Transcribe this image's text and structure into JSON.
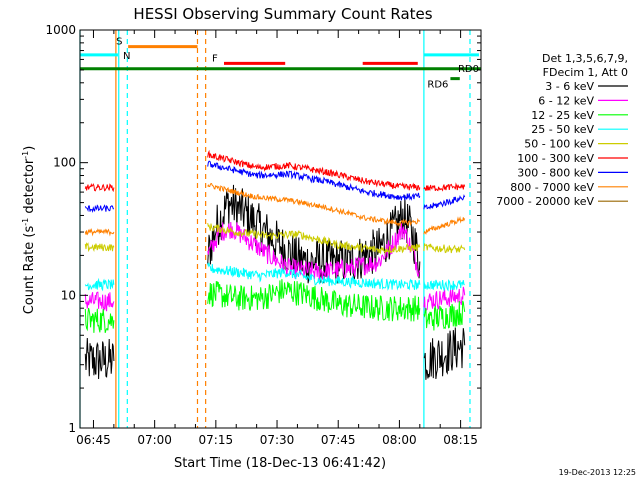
{
  "chart_data": {
    "type": "line",
    "title": "HESSI Observing Summary Count Rates",
    "xlabel": "Start Time (18-Dec-13 06:41:42)",
    "ylabel_main": "Count Rate (s",
    "ylabel_exp1": "-1",
    "ylabel_mid": " detector",
    "ylabel_exp2": "-1",
    "ylabel_end": ")",
    "timestamp": "19-Dec-2013 12:25",
    "x_axis": {
      "range_min": [
        6,
        41.7
      ],
      "range_max": [
        8,
        20
      ],
      "tick_labels": [
        "06:45",
        "07:00",
        "07:15",
        "07:30",
        "07:45",
        "08:00",
        "08:15"
      ],
      "tick_minutes": [
        405,
        420,
        435,
        450,
        465,
        480,
        495
      ],
      "minor_step_minutes": 5
    },
    "y_axis": {
      "scale": "log",
      "ylim": [
        1,
        1000
      ],
      "tick_labels": [
        "1",
        "10",
        "100",
        "1000"
      ],
      "tick_values": [
        1,
        10,
        100,
        1000
      ]
    },
    "legend": {
      "placement": "right",
      "header1": "Det 1,3,5,6,7,9,",
      "header2": "FDecim 1, Att 0",
      "entries": [
        {
          "label": "3 - 6 keV",
          "color": "#000000"
        },
        {
          "label": "6 - 12 keV",
          "color": "#ff00ff"
        },
        {
          "label": "12 - 25 keV",
          "color": "#00ff00"
        },
        {
          "label": "25 - 50 keV",
          "color": "#00ffff"
        },
        {
          "label": "50 - 100 keV",
          "color": "#cccc00"
        },
        {
          "label": "100 - 300 keV",
          "color": "#ff0000"
        },
        {
          "label": "300 - 800 keV",
          "color": "#0000ff"
        },
        {
          "label": "800 - 7000 keV",
          "color": "#ff8000"
        },
        {
          "label": "7000 - 20000 keV",
          "color": "#996600"
        }
      ]
    },
    "flag_bars": [
      {
        "label": "S",
        "color": "#ff8000",
        "start": [
          6,
          53.5
        ],
        "end": [
          7,
          10.5
        ],
        "y": 750
      },
      {
        "label": "N",
        "color": "#00ffff",
        "start": [
          6,
          41.7
        ],
        "end": [
          6,
          51
        ],
        "y": 650
      },
      {
        "label": "",
        "color": "#00ffff",
        "start": [
          8,
          6
        ],
        "end": [
          8,
          19.5
        ],
        "y": 650
      },
      {
        "label": "F",
        "color": "#ff0000",
        "start": [
          7,
          17
        ],
        "end": [
          7,
          32
        ],
        "y": 560
      },
      {
        "label": "",
        "color": "#ff0000",
        "start": [
          7,
          51
        ],
        "end": [
          8,
          4.5
        ],
        "y": 560
      },
      {
        "label": "RD0",
        "color": "#008000",
        "start": [
          6,
          41.7
        ],
        "end": [
          8,
          20
        ],
        "y": 510
      },
      {
        "label": "RD6",
        "color": "#008000",
        "start": [
          8,
          12.5
        ],
        "end": [
          8,
          14.8
        ],
        "y": 430
      }
    ],
    "vertical_markers": [
      {
        "color": "#00ffff",
        "style": "solid",
        "time": [
          6,
          41.7
        ]
      },
      {
        "color": "#ff8000",
        "style": "solid",
        "time": [
          6,
          50.5
        ]
      },
      {
        "color": "#00ffff",
        "style": "solid",
        "time": [
          6,
          51.2
        ]
      },
      {
        "color": "#00ffff",
        "style": "dashed",
        "time": [
          6,
          53.3
        ]
      },
      {
        "color": "#ff8000",
        "style": "dashed",
        "time": [
          7,
          10.5
        ]
      },
      {
        "color": "#ff8000",
        "style": "dashed",
        "time": [
          7,
          12.5
        ]
      },
      {
        "color": "#00ffff",
        "style": "solid",
        "time": [
          8,
          6
        ]
      },
      {
        "color": "#00ffff",
        "style": "dashed",
        "time": [
          8,
          17.3
        ]
      }
    ],
    "series": [
      {
        "name": "3 - 6 keV",
        "color": "#000000",
        "noise": 0.35,
        "segments": [
          [
            [
              [
                6,
                43
              ],
              3.2
            ],
            [
              [
                6,
                50
              ],
              3.2
            ]
          ],
          [
            [
              [
                7,
                13
              ],
              20
            ],
            [
              [
                7,
                15
              ],
              32
            ],
            [
              [
                7,
                18
              ],
              50
            ],
            [
              [
                7,
                22
              ],
              42
            ],
            [
              [
                7,
                27
              ],
              30
            ],
            [
              [
                7,
                32
              ],
              22
            ],
            [
              [
                7,
                36
              ],
              18
            ],
            [
              [
                7,
                42
              ],
              18
            ],
            [
              [
                7,
                48
              ],
              18
            ],
            [
              [
                7,
                55
              ],
              22
            ],
            [
              [
                7,
                59
              ],
              32
            ],
            [
              [
                8,
                1
              ],
              40
            ],
            [
              [
                8,
                3
              ],
              30
            ],
            [
              [
                8,
                5
              ],
              18
            ]
          ],
          [
            [
              [
                8,
                6
              ],
              3.2
            ],
            [
              [
                8,
                16
              ],
              4.2
            ]
          ]
        ]
      },
      {
        "name": "6 - 12 keV",
        "color": "#ff00ff",
        "noise": 0.15,
        "segments": [
          [
            [
              [
                6,
                43
              ],
              9
            ],
            [
              [
                6,
                50
              ],
              9
            ]
          ],
          [
            [
              [
                7,
                13
              ],
              20
            ],
            [
              [
                7,
                16
              ],
              30
            ],
            [
              [
                7,
                19
              ],
              32
            ],
            [
              [
                7,
                23
              ],
              26
            ],
            [
              [
                7,
                28
              ],
              20
            ],
            [
              [
                7,
                33
              ],
              16
            ],
            [
              [
                7,
                40
              ],
              15
            ],
            [
              [
                7,
                48
              ],
              16
            ],
            [
              [
                7,
                55
              ],
              18
            ],
            [
              [
                7,
                59
              ],
              26
            ],
            [
              [
                8,
                1
              ],
              32
            ],
            [
              [
                8,
                3
              ],
              22
            ],
            [
              [
                8,
                5
              ],
              15
            ]
          ],
          [
            [
              [
                8,
                6
              ],
              9
            ],
            [
              [
                8,
                16
              ],
              10
            ]
          ]
        ]
      },
      {
        "name": "12 - 25 keV",
        "color": "#00ff00",
        "noise": 0.2,
        "segments": [
          [
            [
              [
                6,
                43
              ],
              6.5
            ],
            [
              [
                6,
                50
              ],
              6.5
            ]
          ],
          [
            [
              [
                7,
                13
              ],
              10.5
            ],
            [
              [
                7,
                20
              ],
              9.5
            ],
            [
              [
                7,
                26
              ],
              9.5
            ],
            [
              [
                7,
                32
              ],
              11
            ],
            [
              [
                7,
                38
              ],
              10
            ],
            [
              [
                7,
                45
              ],
              8.5
            ],
            [
              [
                7,
                55
              ],
              8
            ],
            [
              [
                8,
                5
              ],
              8
            ]
          ],
          [
            [
              [
                8,
                6
              ],
              6.5
            ],
            [
              [
                8,
                16
              ],
              7.5
            ]
          ]
        ]
      },
      {
        "name": "25 - 50 keV",
        "color": "#00ffff",
        "noise": 0.08,
        "segments": [
          [
            [
              [
                6,
                43
              ],
              12
            ],
            [
              [
                6,
                50
              ],
              12
            ]
          ],
          [
            [
              [
                7,
                13
              ],
              16
            ],
            [
              [
                7,
                20
              ],
              15
            ],
            [
              [
                7,
                26
              ],
              14
            ],
            [
              [
                7,
                32
              ],
              15
            ],
            [
              [
                7,
                40
              ],
              13
            ],
            [
              [
                7,
                50
              ],
              12.5
            ],
            [
              [
                8,
                0
              ],
              12
            ],
            [
              [
                8,
                5
              ],
              12
            ]
          ],
          [
            [
              [
                8,
                6
              ],
              12
            ],
            [
              [
                8,
                16
              ],
              12
            ]
          ]
        ]
      },
      {
        "name": "50 - 100 keV",
        "color": "#cccc00",
        "noise": 0.06,
        "segments": [
          [
            [
              [
                6,
                43
              ],
              23
            ],
            [
              [
                6,
                50
              ],
              23
            ]
          ],
          [
            [
              [
                7,
                13
              ],
              33
            ],
            [
              [
                7,
                20
              ],
              30
            ],
            [
              [
                7,
                28
              ],
              28
            ],
            [
              [
                7,
                35
              ],
              29
            ],
            [
              [
                7,
                45
              ],
              24
            ],
            [
              [
                7,
                55
              ],
              22
            ],
            [
              [
                8,
                5
              ],
              23
            ]
          ],
          [
            [
              [
                8,
                6
              ],
              23
            ],
            [
              [
                8,
                16
              ],
              22
            ]
          ]
        ]
      },
      {
        "name": "100 - 300 keV",
        "color": "#ff0000",
        "noise": 0.05,
        "segments": [
          [
            [
              [
                6,
                43
              ],
              65
            ],
            [
              [
                6,
                50
              ],
              65
            ]
          ],
          [
            [
              [
                7,
                13
              ],
              115
            ],
            [
              [
                7,
                18
              ],
              105
            ],
            [
              [
                7,
                25
              ],
              92
            ],
            [
              [
                7,
                33
              ],
              95
            ],
            [
              [
                7,
                42
              ],
              85
            ],
            [
              [
                7,
                52
              ],
              72
            ],
            [
              [
                8,
                0
              ],
              66
            ],
            [
              [
                8,
                5
              ],
              65
            ]
          ],
          [
            [
              [
                8,
                6
              ],
              64
            ],
            [
              [
                8,
                16
              ],
              66
            ]
          ]
        ]
      },
      {
        "name": "300 - 800 keV",
        "color": "#0000ff",
        "noise": 0.05,
        "segments": [
          [
            [
              [
                6,
                43
              ],
              45
            ],
            [
              [
                6,
                50
              ],
              45
            ]
          ],
          [
            [
              [
                7,
                13
              ],
              98
            ],
            [
              [
                7,
                18
              ],
              90
            ],
            [
              [
                7,
                25
              ],
              80
            ],
            [
              [
                7,
                33
              ],
              82
            ],
            [
              [
                7,
                42
              ],
              72
            ],
            [
              [
                7,
                52
              ],
              60
            ],
            [
              [
                8,
                0
              ],
              55
            ],
            [
              [
                8,
                5
              ],
              56
            ]
          ],
          [
            [
              [
                8,
                6
              ],
              45
            ],
            [
              [
                8,
                16
              ],
              55
            ]
          ]
        ]
      },
      {
        "name": "800 - 7000 keV",
        "color": "#ff8000",
        "noise": 0.04,
        "segments": [
          [
            [
              [
                6,
                43
              ],
              30
            ],
            [
              [
                6,
                50
              ],
              30
            ]
          ],
          [
            [
              [
                7,
                13
              ],
              68
            ],
            [
              [
                7,
                18
              ],
              62
            ],
            [
              [
                7,
                25
              ],
              55
            ],
            [
              [
                7,
                33
              ],
              52
            ],
            [
              [
                7,
                42
              ],
              46
            ],
            [
              [
                7,
                52
              ],
              38
            ],
            [
              [
                8,
                0
              ],
              35
            ],
            [
              [
                8,
                5
              ],
              36
            ]
          ],
          [
            [
              [
                8,
                6
              ],
              30
            ],
            [
              [
                8,
                16
              ],
              38
            ]
          ]
        ]
      }
    ]
  }
}
